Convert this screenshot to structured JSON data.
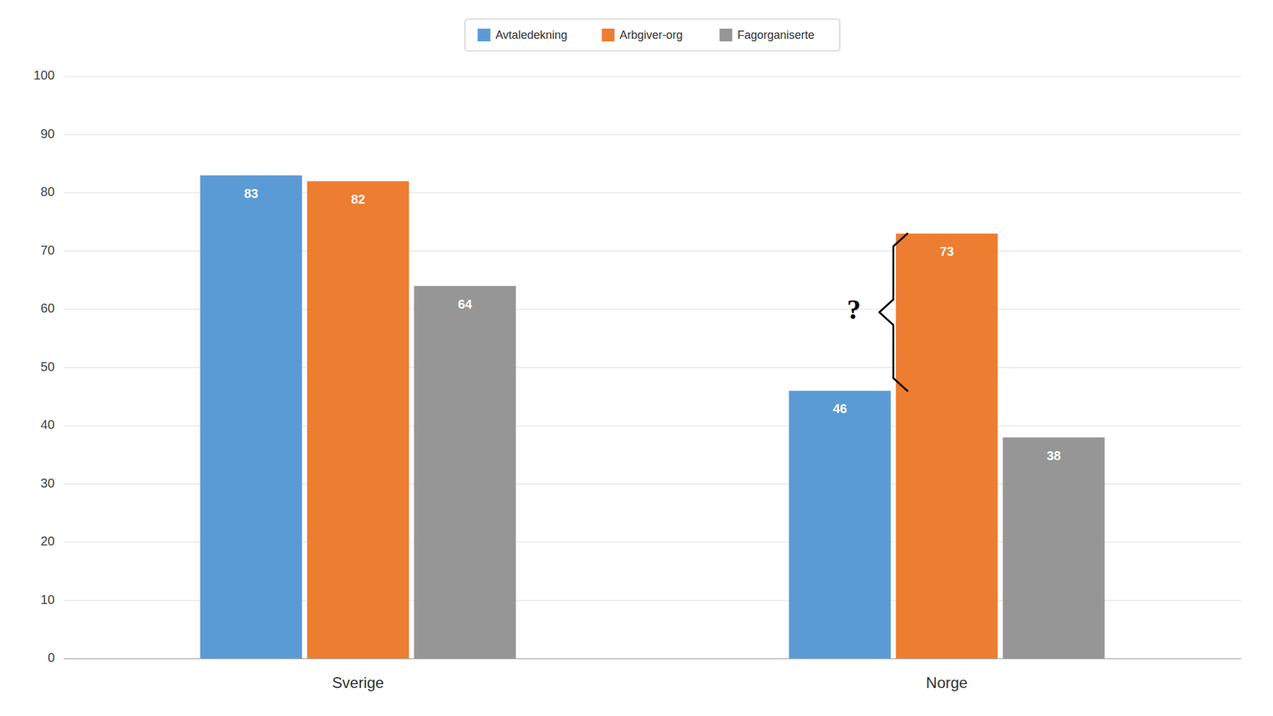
{
  "chart_data": {
    "type": "bar",
    "categories": [
      "Sverige",
      "Norge"
    ],
    "series": [
      {
        "name": "Avtaledekning",
        "color": "#5B9BD5",
        "values": [
          83,
          46
        ]
      },
      {
        "name": "Arbgiver-org",
        "color": "#ED7D31",
        "values": [
          82,
          73
        ]
      },
      {
        "name": "Fagorganiserte",
        "color": "#969696",
        "values": [
          64,
          38
        ]
      }
    ],
    "ylim": [
      0,
      100
    ],
    "yticks": [
      0,
      10,
      20,
      30,
      40,
      50,
      60,
      70,
      80,
      90,
      100
    ],
    "grid": true,
    "legend": "top",
    "data_labels": true,
    "annotations": [
      {
        "text": "?",
        "category": "Norge",
        "y": [
          46,
          73
        ]
      }
    ]
  }
}
